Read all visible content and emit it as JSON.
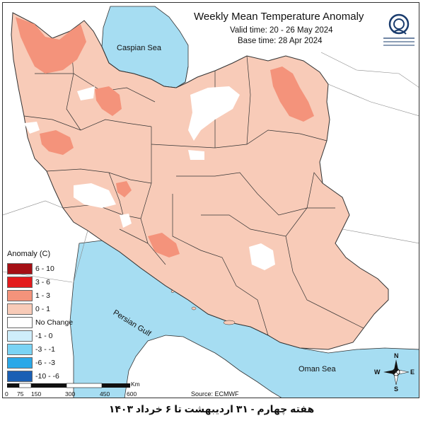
{
  "map": {
    "title": "Weekly Mean Temperature Anomaly",
    "valid_time": "Valid time: 20 - 26 May 2024",
    "base_time": "Base time: 28 Apr 2024",
    "source": "Source: ECMWF",
    "seas": {
      "caspian": "Caspian Sea",
      "persian_gulf": "Persian Gulf",
      "oman": "Oman Sea"
    },
    "compass": {
      "n": "N",
      "s": "S",
      "e": "E",
      "w": "W"
    }
  },
  "legend": {
    "title": "Anomaly (C)",
    "items": [
      {
        "label": "6 - 10",
        "color": "#a50f15"
      },
      {
        "label": "3 - 6",
        "color": "#e31a1c"
      },
      {
        "label": "1 - 3",
        "color": "#f4937b"
      },
      {
        "label": "0 - 1",
        "color": "#f8cbb8"
      },
      {
        "label": "No Change",
        "color": "#ffffff"
      },
      {
        "label": "-1 - 0",
        "color": "#cfeefb"
      },
      {
        "label": "-3 - -1",
        "color": "#7ad3f4"
      },
      {
        "label": "-6 - -3",
        "color": "#2aa8e8"
      },
      {
        "label": "-10 - -6",
        "color": "#1a5fb4"
      }
    ]
  },
  "scale": {
    "unit": "Km",
    "labels": [
      "0",
      "75",
      "150",
      "300",
      "450",
      "600"
    ]
  },
  "caption": "هفته چهارم - ۳۱ اردیبهشت تا ۶ خرداد ۱۴۰۳",
  "colors": {
    "sea": "#a6ddf2",
    "land_anomaly_low": "#f8cbb8",
    "land_anomaly_mid": "#f4937b",
    "no_change": "#ffffff"
  }
}
